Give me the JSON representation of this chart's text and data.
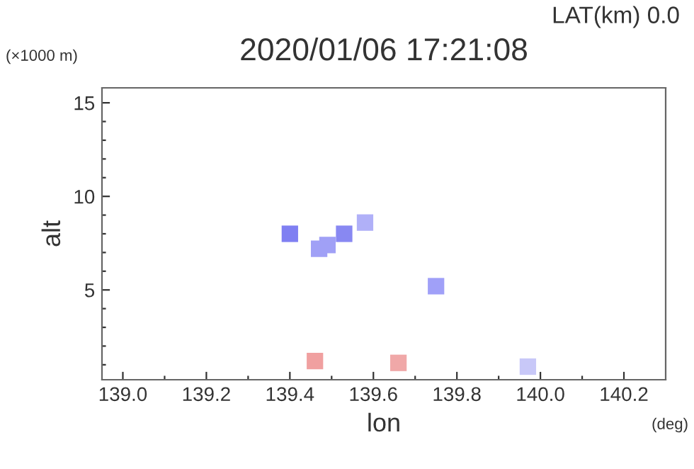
{
  "chart_data": {
    "type": "scatter",
    "title": "2020/01/06 17:21:08",
    "xlabel": "lon",
    "ylabel": "alt",
    "annotations": [
      "LAT(km) 0.0",
      "(×1000 m)",
      "(deg)"
    ],
    "x": [
      139.4,
      139.47,
      139.49,
      139.53,
      139.58,
      139.75,
      139.46,
      139.66,
      139.97
    ],
    "values": [
      8.0,
      7.2,
      7.4,
      8.0,
      8.6,
      5.2,
      1.2,
      1.1,
      0.9
    ],
    "colors": [
      "#7f7ff2",
      "#a0a0f6",
      "#a0a0f6",
      "#8888f2",
      "#b0b0f8",
      "#a0a0f8",
      "#f0a0a0",
      "#f0a8a8",
      "#c8c8f8"
    ],
    "marker": "square",
    "grid": false,
    "xlim": [
      138.95,
      140.3
    ],
    "xticks": [
      {
        "value": 139,
        "label": "139.0"
      },
      {
        "value": 139.1,
        "label": null
      },
      139.2,
      {
        "value": 139.3,
        "label": null
      },
      139.4,
      {
        "value": 139.5,
        "label": null
      },
      139.6,
      {
        "value": 139.7,
        "label": null
      },
      139.8,
      {
        "value": 139.9,
        "label": null
      },
      {
        "value": 140,
        "label": "140.0"
      },
      {
        "value": 140.1,
        "label": null
      },
      140.2
    ],
    "ylim": [
      0.2,
      15.8
    ],
    "yticks": [
      {
        "value": 1,
        "label": null
      },
      {
        "value": 2,
        "label": null
      },
      {
        "value": 3,
        "label": null
      },
      {
        "value": 4,
        "label": null
      },
      5,
      {
        "value": 6,
        "label": null
      },
      {
        "value": 7,
        "label": null
      },
      {
        "value": 8,
        "label": null
      },
      {
        "value": 9,
        "label": null
      },
      10,
      {
        "value": 11,
        "label": null
      },
      {
        "value": 12,
        "label": null
      },
      {
        "value": 13,
        "label": null
      },
      {
        "value": 14,
        "label": null
      },
      15
    ]
  }
}
